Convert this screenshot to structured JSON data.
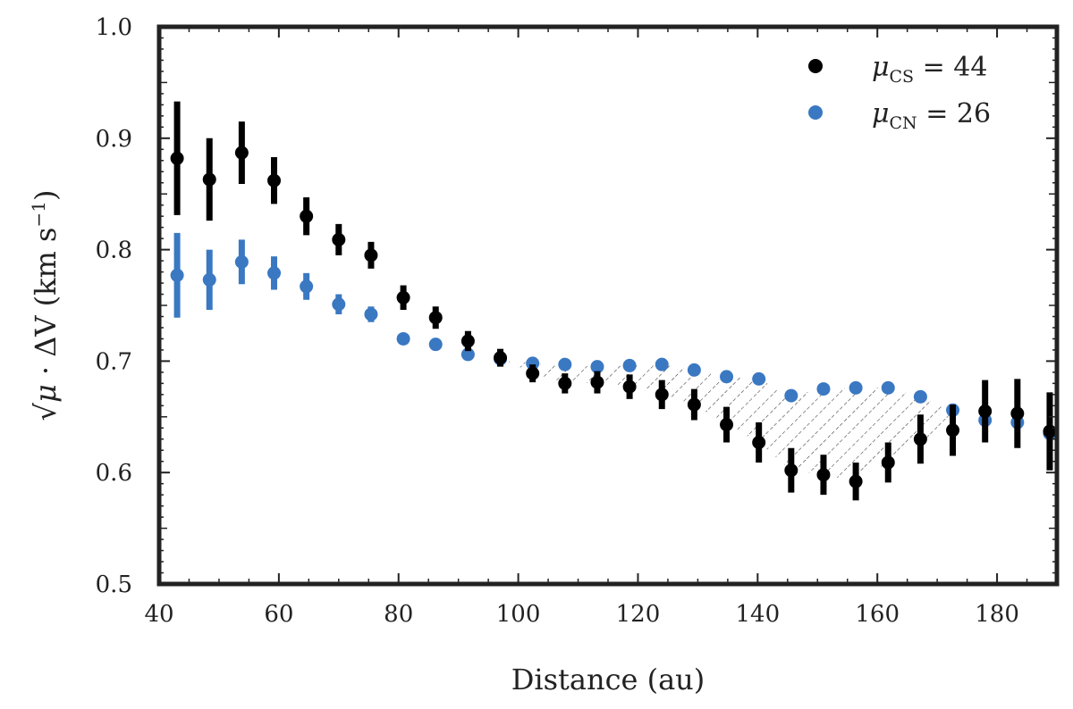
{
  "chart_data": {
    "type": "scatter",
    "title": "",
    "xlabel": "Distance    (au)",
    "ylabel": {
      "sqrt": "√",
      "mu": "μ",
      "rest": " · ΔV    (km s",
      "exp": "−1",
      "close": ")"
    },
    "xlim": [
      40,
      190
    ],
    "ylim": [
      0.5,
      1.0
    ],
    "xticks": [
      40,
      60,
      80,
      100,
      120,
      140,
      160,
      180
    ],
    "yticks": [
      0.5,
      0.6,
      0.7,
      0.8,
      0.9,
      1.0
    ],
    "ytick_labels": [
      "0.5",
      "0.6",
      "0.7",
      "0.8",
      "0.9",
      "1.0"
    ],
    "grid": false,
    "legend_position": "top-right",
    "hatch_region": "between series where μCN > μCS (approx. 97–172 au)",
    "x": [
      43,
      48.4,
      53.8,
      59.2,
      64.6,
      70,
      75.4,
      80.8,
      86.2,
      91.6,
      97,
      102.4,
      107.8,
      113.2,
      118.6,
      124,
      129.4,
      134.8,
      140.2,
      145.6,
      151,
      156.4,
      161.8,
      167.2,
      172.6,
      178,
      183.4,
      188.8
    ],
    "series": [
      {
        "name": "CS",
        "legend": {
          "sym": "μ",
          "sub": "CS",
          "rest": " = 44"
        },
        "color": "#000000",
        "values": [
          0.882,
          0.863,
          0.887,
          0.862,
          0.83,
          0.809,
          0.795,
          0.757,
          0.739,
          0.718,
          0.703,
          0.689,
          0.68,
          0.681,
          0.677,
          0.67,
          0.661,
          0.643,
          0.627,
          0.602,
          0.598,
          0.592,
          0.609,
          0.63,
          0.638,
          0.655,
          0.653,
          0.637
        ],
        "errors": [
          0.051,
          0.037,
          0.028,
          0.021,
          0.017,
          0.014,
          0.012,
          0.011,
          0.01,
          0.009,
          0.008,
          0.008,
          0.009,
          0.01,
          0.011,
          0.013,
          0.014,
          0.016,
          0.018,
          0.02,
          0.018,
          0.017,
          0.018,
          0.022,
          0.023,
          0.028,
          0.031,
          0.035
        ]
      },
      {
        "name": "CN",
        "legend": {
          "sym": "μ",
          "sub": "CN",
          "rest": " = 26"
        },
        "color": "#3a78c2",
        "values": [
          0.777,
          0.773,
          0.789,
          0.779,
          0.767,
          0.751,
          0.742,
          0.72,
          0.715,
          0.706,
          0.702,
          0.698,
          0.697,
          0.695,
          0.696,
          0.697,
          0.692,
          0.686,
          0.684,
          0.669,
          0.675,
          0.676,
          0.676,
          0.668,
          0.656,
          0.647,
          0.645,
          0.635
        ],
        "errors": [
          0.038,
          0.027,
          0.02,
          0.015,
          0.012,
          0.009,
          0.007,
          0.005,
          0.005,
          0.005,
          0.005,
          0.004,
          0.004,
          0.004,
          0.004,
          0.004,
          0.004,
          0.004,
          0.004,
          0.004,
          0.004,
          0.004,
          0.004,
          0.004,
          0.004,
          0.004,
          0.005,
          0.005
        ]
      }
    ]
  }
}
